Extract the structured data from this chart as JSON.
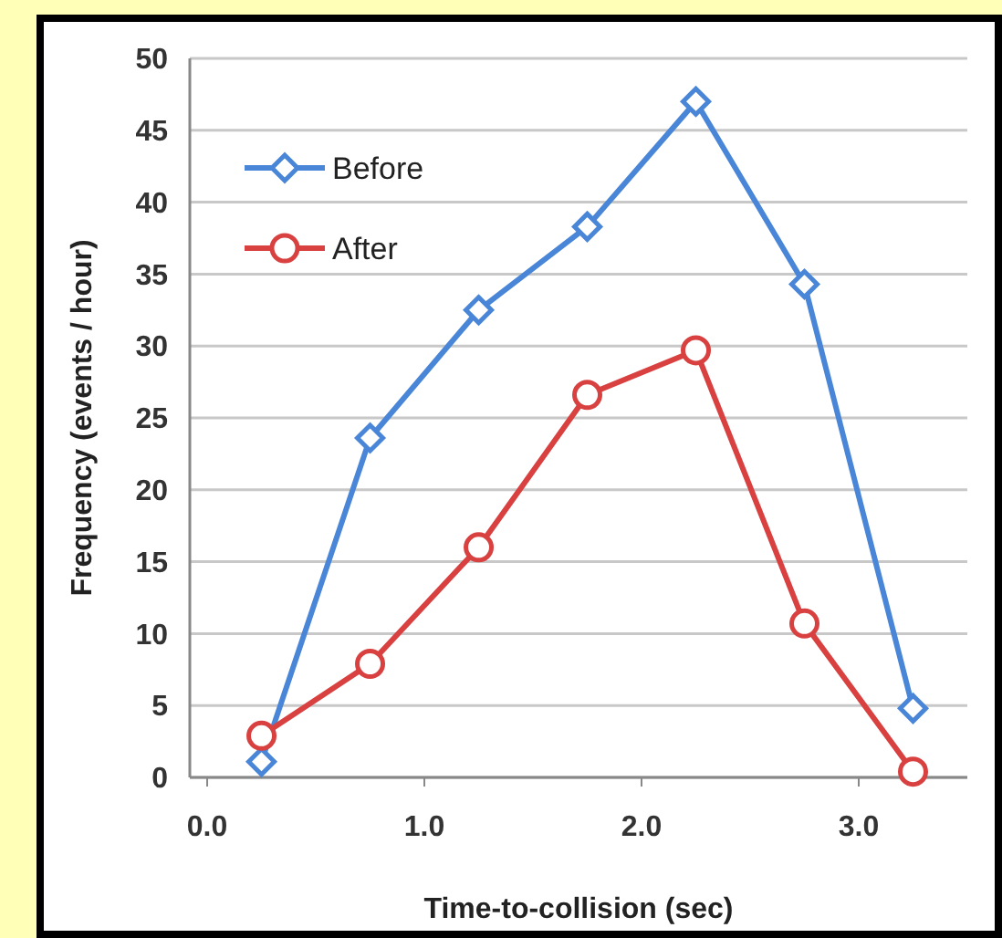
{
  "chart_data": {
    "type": "line",
    "xlabel": "Time-to-collision (sec)",
    "ylabel": "Frequency (events / hour)",
    "x": [
      0.25,
      0.75,
      1.25,
      1.75,
      2.25,
      2.75,
      3.25
    ],
    "series": [
      {
        "name": "Before",
        "color": "#4a86d8",
        "marker": "diamond",
        "values": [
          1.1,
          23.6,
          32.5,
          38.3,
          47,
          34.3,
          4.8
        ]
      },
      {
        "name": "After",
        "color": "#d94040",
        "marker": "circle",
        "values": [
          2.9,
          7.9,
          16,
          26.6,
          29.7,
          10.7,
          0.4
        ]
      }
    ],
    "xlim": [
      -0.08,
      3.5
    ],
    "xticks": [
      {
        "value": 0,
        "label": "0.0"
      },
      {
        "value": 1,
        "label": "1.0"
      },
      {
        "value": 2,
        "label": "2.0"
      },
      {
        "value": 3,
        "label": "3.0"
      }
    ],
    "ylim": [
      0,
      50
    ],
    "yticks": [
      0,
      5,
      10,
      15,
      20,
      25,
      30,
      35,
      40,
      45,
      50
    ],
    "grid": "y",
    "legend": "top left",
    "line_style": "solid"
  }
}
